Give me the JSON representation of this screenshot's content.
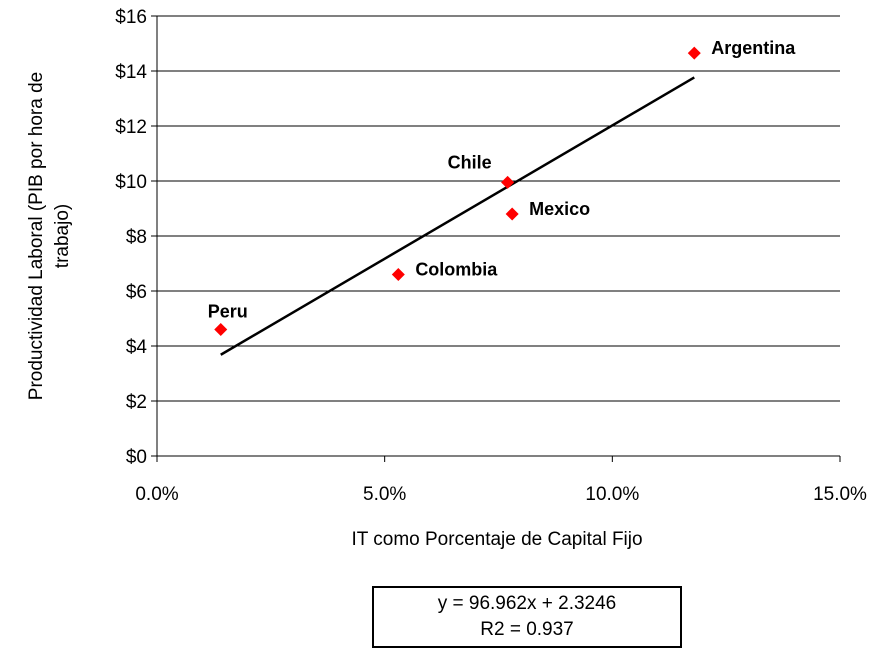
{
  "chart_data": {
    "type": "scatter",
    "xlabel": "IT como Porcentaje de Capital Fijo",
    "ylabel_lines": [
      "Productividad Laboral (PIB por hora de",
      "trabajo)"
    ],
    "x_ticks": [
      "0.0%",
      "5.0%",
      "10.0%",
      "15.0%"
    ],
    "y_ticks": [
      "$0",
      "$2",
      "$4",
      "$6",
      "$8",
      "$10",
      "$12",
      "$14",
      "$16"
    ],
    "xlim": [
      0,
      0.15
    ],
    "ylim": [
      0,
      16
    ],
    "grid": "horizontal",
    "points": [
      {
        "label": "Argentina",
        "x": 0.118,
        "y": 14.65,
        "label_pos": "right"
      },
      {
        "label": "Chile",
        "x": 0.077,
        "y": 9.95,
        "label_pos": "left-above"
      },
      {
        "label": "Mexico",
        "x": 0.078,
        "y": 8.8,
        "label_pos": "right"
      },
      {
        "label": "Colombia",
        "x": 0.053,
        "y": 6.6,
        "label_pos": "right"
      },
      {
        "label": "Peru",
        "x": 0.014,
        "y": 4.6,
        "label_pos": "above"
      }
    ],
    "trendline": {
      "x": [
        0.014,
        0.118
      ],
      "slope": 96.962,
      "intercept": 2.3246
    },
    "marker_color": "#ff0000",
    "line_color": "#000000",
    "equation": {
      "line1": "y = 96.962x + 2.3246",
      "line2": "R2 = 0.937"
    }
  }
}
